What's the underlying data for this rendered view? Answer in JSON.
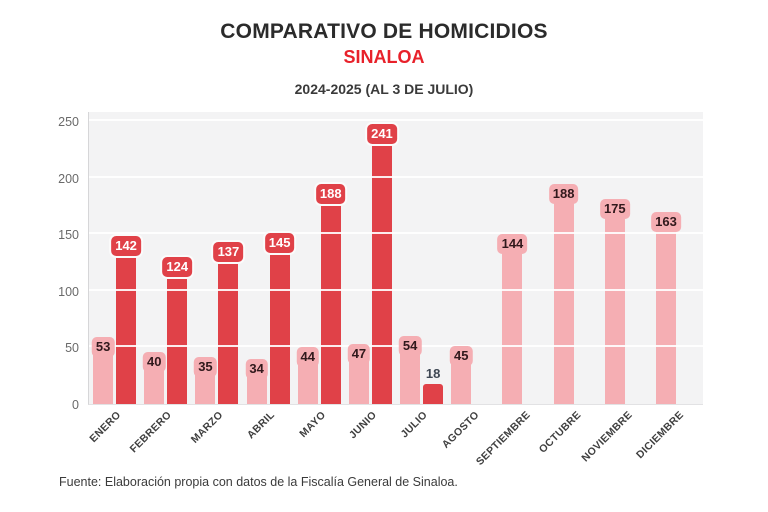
{
  "header": {
    "title": "COMPARATIVO DE HOMICIDIOS",
    "region": "SINALOA",
    "period": "2024-2025 (AL 3 DE JULIO)"
  },
  "footer": {
    "source": "Fuente: Elaboración propia con datos de la Fiscalía General de Sinaloa."
  },
  "colors": {
    "accent_red": "#e8212a",
    "bar_2024": "#f5aeb3",
    "bar_2025": "#e04148",
    "plot_background": "#f3f3f4",
    "dark_value_text": "#31191c",
    "outside_value_text": "#3e4753"
  },
  "chart_data": {
    "type": "bar",
    "title": "COMPARATIVO DE HOMICIDIOS — SINALOA — 2024-2025 (AL 3 DE JULIO)",
    "categories": [
      "ENERO",
      "FEBRERO",
      "MARZO",
      "ABRIL",
      "MAYO",
      "JUNIO",
      "JULIO",
      "AGOSTO",
      "SEPTIEMBRE",
      "OCTUBRE",
      "NOVIEMBRE",
      "DICIEMBRE"
    ],
    "series": [
      {
        "name": "2024",
        "color": "#f5aeb3",
        "values": [
          53,
          40,
          35,
          34,
          44,
          47,
          54,
          45,
          144,
          188,
          175,
          163
        ]
      },
      {
        "name": "2025",
        "color": "#e04148",
        "values": [
          142,
          124,
          137,
          145,
          188,
          241,
          18,
          null,
          null,
          null,
          null,
          null
        ]
      }
    ],
    "xlabel": "",
    "ylabel": "",
    "ylim": [
      0,
      250
    ],
    "yticks": [
      0,
      50,
      100,
      150,
      200,
      250
    ],
    "grid": true,
    "legend_position": "none",
    "value_labels": true
  }
}
